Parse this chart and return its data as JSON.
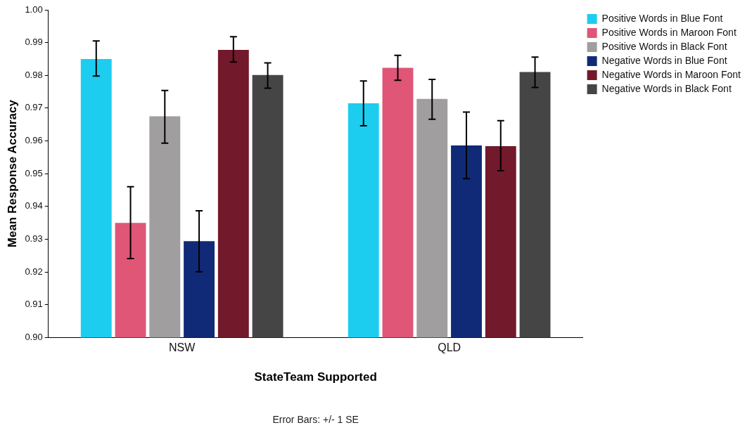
{
  "chart_data": {
    "type": "bar",
    "categories": [
      "NSW",
      "QLD"
    ],
    "xlabel": "StateTeam Supported",
    "ylabel": "Mean Response Accuracy",
    "ylim": [
      0.9,
      1.0
    ],
    "yticks": [
      {
        "value": 0.9,
        "label": "0.90"
      },
      0.91,
      0.92,
      0.93,
      0.94,
      0.95,
      0.96,
      0.97,
      0.98,
      0.99,
      {
        "value": 1.0,
        "label": "1.00"
      }
    ],
    "grid": false,
    "legend": "top right",
    "annotations": [
      "Error Bars: +/- 1 SE"
    ],
    "series": [
      {
        "name": "Positive Words in Blue Font",
        "color": "#1ccdf0",
        "values": [
          0.985,
          0.9715
        ],
        "errors": [
          [
            0.9798,
            0.9905
          ],
          [
            0.9646,
            0.9783
          ]
        ]
      },
      {
        "name": "Positive Words in Maroon Font",
        "color": "#df5677",
        "values": [
          0.935,
          0.9823
        ],
        "errors": [
          [
            0.9241,
            0.946
          ],
          [
            0.9785,
            0.9861
          ]
        ]
      },
      {
        "name": "Positive Words in Black Font",
        "color": "#a09e9f",
        "values": [
          0.9675,
          0.9728
        ],
        "errors": [
          [
            0.9593,
            0.9754
          ],
          [
            0.9666,
            0.9788
          ]
        ]
      },
      {
        "name": "Negative Words in Blue Font",
        "color": "#112a77",
        "values": [
          0.9294,
          0.9586
        ],
        "errors": [
          [
            0.9201,
            0.9387
          ],
          [
            0.9485,
            0.9688
          ]
        ]
      },
      {
        "name": "Negative Words in Maroon Font",
        "color": "#73192c",
        "values": [
          0.9878,
          0.9584
        ],
        "errors": [
          [
            0.9841,
            0.9918
          ],
          [
            0.9509,
            0.9662
          ]
        ]
      },
      {
        "name": "Negative Words in Black Font",
        "color": "#454545",
        "values": [
          0.9801,
          0.981
        ],
        "errors": [
          [
            0.9761,
            0.9838
          ],
          [
            0.9763,
            0.9856
          ]
        ]
      }
    ]
  }
}
